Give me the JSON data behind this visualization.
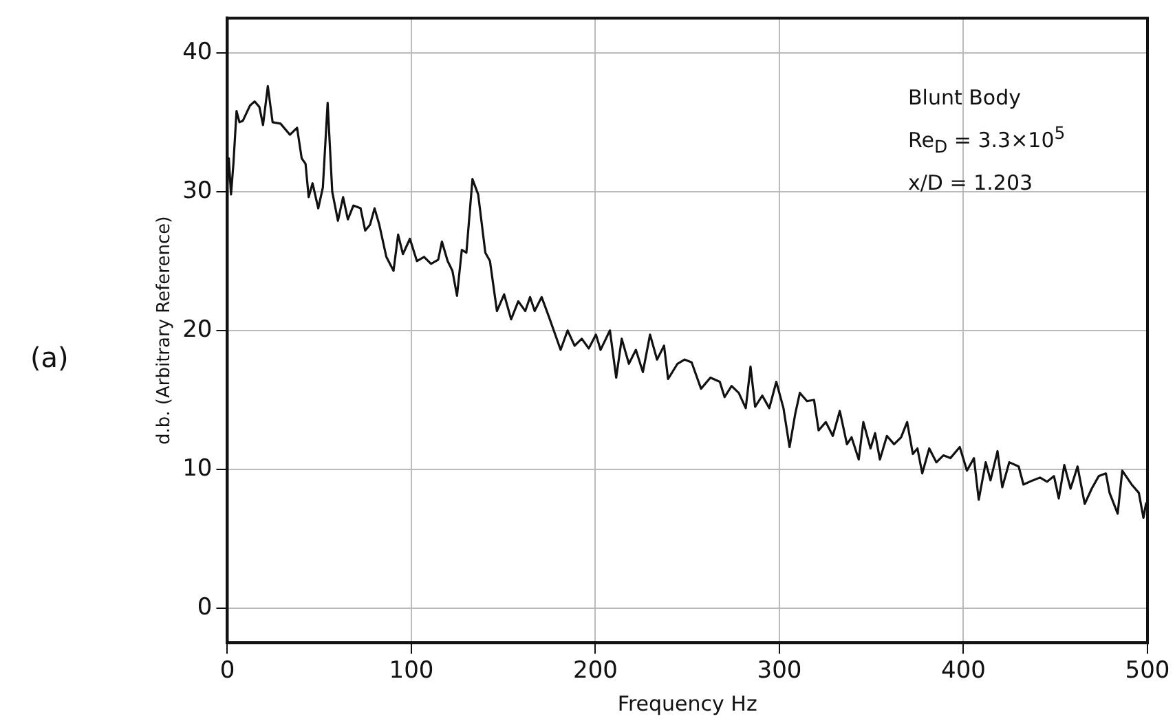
{
  "chart_data": {
    "type": "line",
    "xlabel": "Frequency Hz",
    "ylabel": "d.b. (Arbitrary Reference)",
    "annotations": [
      "(a)",
      "Blunt Body",
      "Re$_{D}$ = 3.3×10$^{5}$",
      "x/D = 1.203"
    ],
    "xlim": [
      0,
      500
    ],
    "xticks": [
      0,
      100,
      200,
      300,
      400,
      500
    ],
    "ylim": [
      -2.5,
      42.5
    ],
    "yticks": [
      0,
      10,
      20,
      30,
      40
    ],
    "grid": true,
    "legend": false,
    "marker": "none",
    "line_style": "solid",
    "series": [
      {
        "color": "#111111",
        "x": [
          0,
          0.8,
          2,
          3.3,
          5,
          6.6,
          8.4,
          12.3,
          14.8,
          17.4,
          19.4,
          22,
          24.6,
          28.9,
          34,
          37.9,
          40.4,
          42.5,
          44.2,
          46.3,
          49.4,
          51.9,
          54.5,
          57,
          60.1,
          62.9,
          65.5,
          68.5,
          72.4,
          74.9,
          77.5,
          80,
          82.6,
          86.4,
          90.3,
          92.8,
          95.4,
          99.2,
          103,
          106.9,
          110.7,
          114.6,
          116.6,
          119.7,
          122.3,
          124.8,
          127.4,
          129.9,
          133.2,
          136.3,
          140.2,
          142.7,
          146.5,
          150.4,
          154.2,
          158.1,
          161.9,
          164.5,
          167,
          170.8,
          174.7,
          181.1,
          184.9,
          188.7,
          192.6,
          196.4,
          200.3,
          202.8,
          207.9,
          211.3,
          214.3,
          218.2,
          222,
          225.8,
          229.7,
          233.5,
          237.3,
          239.5,
          244.6,
          248.5,
          252.3,
          257.4,
          262.5,
          267.6,
          270.2,
          274,
          277.9,
          281.7,
          284.3,
          286.8,
          290.7,
          294.5,
          298.3,
          302.2,
          305.5,
          308.6,
          311.1,
          315,
          318.8,
          321.3,
          325.2,
          329,
          332.8,
          336.7,
          339.2,
          343.1,
          345.6,
          349.5,
          352,
          354.6,
          358.4,
          362.3,
          366.1,
          369.4,
          372.5,
          375,
          377.6,
          381.4,
          385.3,
          389.1,
          392.9,
          398,
          401.9,
          405.7,
          408.3,
          412.1,
          414.7,
          418.5,
          421.1,
          424.9,
          430,
          432.6,
          437.7,
          441.6,
          445.4,
          449.2,
          451.8,
          454.8,
          458.2,
          462,
          465.9,
          469.7,
          473.5,
          477.4,
          479.4,
          483.8,
          486.3,
          491.4,
          495.3,
          497.8,
          499.3
        ],
        "values": [
          30.5,
          32.4,
          29.8,
          32,
          35.8,
          35,
          35.1,
          36.2,
          36.5,
          36.1,
          34.8,
          37.6,
          35,
          34.9,
          34.1,
          34.6,
          32.4,
          32,
          29.6,
          30.6,
          28.8,
          30.3,
          36.4,
          30,
          27.9,
          29.6,
          28,
          29,
          28.8,
          27.2,
          27.6,
          28.8,
          27.6,
          25.3,
          24.3,
          26.9,
          25.5,
          26.6,
          25,
          25.3,
          24.8,
          25.1,
          26.4,
          25,
          24.3,
          22.5,
          25.8,
          25.6,
          30.9,
          29.8,
          25.6,
          25,
          21.4,
          22.6,
          20.8,
          22.1,
          21.4,
          22.4,
          21.4,
          22.4,
          21,
          18.6,
          20,
          18.9,
          19.4,
          18.7,
          19.7,
          18.6,
          20,
          16.6,
          19.4,
          17.6,
          18.6,
          17,
          19.7,
          17.9,
          18.9,
          16.5,
          17.6,
          17.9,
          17.7,
          15.8,
          16.6,
          16.3,
          15.2,
          16,
          15.5,
          14.4,
          17.4,
          14.5,
          15.3,
          14.4,
          16.3,
          14.4,
          11.6,
          14,
          15.5,
          14.9,
          15,
          12.8,
          13.4,
          12.4,
          14.2,
          11.8,
          12.3,
          10.7,
          13.4,
          11.5,
          12.6,
          10.7,
          12.4,
          11.8,
          12.3,
          13.4,
          11.1,
          11.5,
          9.7,
          11.5,
          10.5,
          11,
          10.8,
          11.6,
          9.9,
          10.8,
          7.8,
          10.5,
          9.2,
          11.3,
          8.7,
          10.5,
          10.2,
          8.9,
          9.2,
          9.4,
          9.1,
          9.5,
          7.9,
          10.3,
          8.6,
          10.2,
          7.5,
          8.6,
          9.5,
          9.7,
          8.3,
          6.8,
          9.9,
          8.9,
          8.3,
          6.5,
          7.6
        ]
      }
    ]
  }
}
